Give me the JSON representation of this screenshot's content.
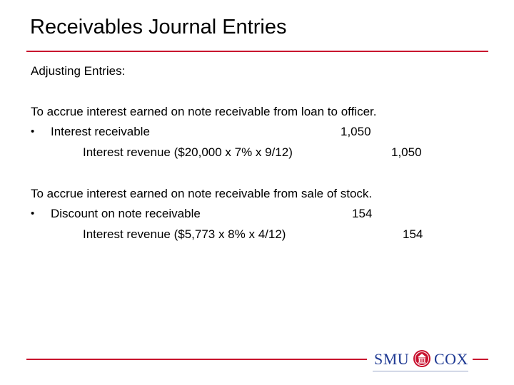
{
  "slide": {
    "title": "Receivables Journal Entries",
    "heading": "Adjusting Entries:",
    "bullet_char": "•",
    "entry1": {
      "description": "To accrue interest earned on note receivable from loan to officer.",
      "debit_account": "Interest receivable",
      "debit_amount": "1,050",
      "credit_account": "Interest revenue ($20,000 x 7% x 9/12)",
      "credit_amount": "1,050"
    },
    "entry2": {
      "description": "To accrue interest earned on note receivable from sale of stock.",
      "debit_account": "Discount on note receivable",
      "debit_amount": "154",
      "credit_account": "Interest revenue ($5,773 x 8% x 4/12)",
      "credit_amount": "154"
    }
  },
  "logo": {
    "left_text": "SMU",
    "right_text": "COX",
    "brand_red": "#C8102E",
    "brand_blue": "#1F3A93"
  }
}
